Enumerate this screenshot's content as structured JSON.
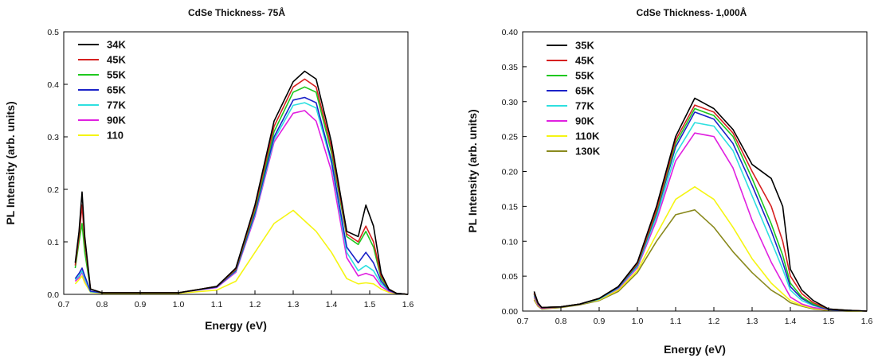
{
  "chart_data": [
    {
      "type": "line",
      "title": "CdSe Thickness- 75Å",
      "xlabel": "Energy (eV)",
      "ylabel": "PL Intensity (arb. units)",
      "xlim": [
        0.7,
        1.6
      ],
      "ylim": [
        0.0,
        0.5
      ],
      "xticks": [
        0.7,
        0.8,
        0.9,
        1.0,
        1.1,
        1.2,
        1.3,
        1.4,
        1.5,
        1.6
      ],
      "yticks": [
        0.0,
        0.1,
        0.2,
        0.3,
        0.4,
        0.5
      ],
      "x_tick_labels": [
        "0.7",
        "0.8",
        "0.9",
        "1.0",
        "1.1",
        "1.2",
        "1.3",
        "1.4",
        "1.5",
        "1.6"
      ],
      "y_tick_labels": [
        "0.0",
        "0.1",
        "0.2",
        "0.3",
        "0.4",
        "0.5"
      ],
      "grid": false,
      "legend": "top-left",
      "x": [
        0.73,
        0.74,
        0.748,
        0.755,
        0.77,
        0.8,
        0.9,
        1.0,
        1.1,
        1.15,
        1.2,
        1.25,
        1.3,
        1.33,
        1.36,
        1.4,
        1.44,
        1.47,
        1.49,
        1.51,
        1.53,
        1.55,
        1.57,
        1.6
      ],
      "series": [
        {
          "name": "34K",
          "color": "#000000",
          "values": [
            0.06,
            0.12,
            0.195,
            0.11,
            0.01,
            0.003,
            0.003,
            0.003,
            0.015,
            0.05,
            0.17,
            0.33,
            0.405,
            0.425,
            0.41,
            0.29,
            0.12,
            0.11,
            0.17,
            0.13,
            0.04,
            0.01,
            0.002,
            0.0
          ]
        },
        {
          "name": "45K",
          "color": "#d62020",
          "values": [
            0.055,
            0.11,
            0.17,
            0.1,
            0.01,
            0.003,
            0.003,
            0.003,
            0.015,
            0.048,
            0.165,
            0.32,
            0.395,
            0.41,
            0.395,
            0.28,
            0.115,
            0.1,
            0.13,
            0.1,
            0.035,
            0.01,
            0.002,
            0.0
          ]
        },
        {
          "name": "55K",
          "color": "#1fc81f",
          "values": [
            0.05,
            0.1,
            0.135,
            0.08,
            0.01,
            0.003,
            0.003,
            0.003,
            0.015,
            0.047,
            0.16,
            0.31,
            0.385,
            0.395,
            0.385,
            0.27,
            0.11,
            0.095,
            0.12,
            0.09,
            0.03,
            0.01,
            0.002,
            0.0
          ]
        },
        {
          "name": "65K",
          "color": "#1b22c8",
          "values": [
            0.03,
            0.04,
            0.05,
            0.035,
            0.006,
            0.003,
            0.003,
            0.003,
            0.014,
            0.045,
            0.155,
            0.3,
            0.37,
            0.375,
            0.365,
            0.255,
            0.09,
            0.06,
            0.08,
            0.06,
            0.025,
            0.008,
            0.002,
            0.0
          ]
        },
        {
          "name": "77K",
          "color": "#2ee0e0",
          "values": [
            0.028,
            0.035,
            0.045,
            0.03,
            0.005,
            0.003,
            0.003,
            0.003,
            0.014,
            0.044,
            0.152,
            0.295,
            0.36,
            0.365,
            0.355,
            0.25,
            0.08,
            0.045,
            0.055,
            0.045,
            0.02,
            0.008,
            0.002,
            0.0
          ]
        },
        {
          "name": "90K",
          "color": "#e020e0",
          "values": [
            0.025,
            0.032,
            0.042,
            0.028,
            0.005,
            0.003,
            0.003,
            0.003,
            0.013,
            0.042,
            0.148,
            0.29,
            0.345,
            0.35,
            0.33,
            0.235,
            0.07,
            0.035,
            0.04,
            0.035,
            0.015,
            0.006,
            0.002,
            0.0
          ]
        },
        {
          "name": "110",
          "color": "#f5f514",
          "values": [
            0.02,
            0.028,
            0.035,
            0.022,
            0.004,
            0.002,
            0.002,
            0.002,
            0.008,
            0.025,
            0.08,
            0.135,
            0.16,
            0.14,
            0.12,
            0.08,
            0.03,
            0.02,
            0.022,
            0.02,
            0.01,
            0.004,
            0.001,
            0.0
          ]
        }
      ]
    },
    {
      "type": "line",
      "title": "CdSe Thickness- 1,000Å",
      "xlabel": "Energy (eV)",
      "ylabel": "PL Intensity (arb. units)",
      "xlim": [
        0.7,
        1.6
      ],
      "ylim": [
        0.0,
        0.4
      ],
      "xticks": [
        0.7,
        0.8,
        0.9,
        1.0,
        1.1,
        1.2,
        1.3,
        1.4,
        1.5,
        1.6
      ],
      "yticks": [
        0.0,
        0.05,
        0.1,
        0.15,
        0.2,
        0.25,
        0.3,
        0.35,
        0.4
      ],
      "x_tick_labels": [
        "0.7",
        "0.8",
        "0.9",
        "1.0",
        "1.1",
        "1.2",
        "1.3",
        "1.4",
        "1.5",
        "1.6"
      ],
      "y_tick_labels": [
        "0.00",
        "0.05",
        "0.10",
        "0.15",
        "0.20",
        "0.25",
        "0.30",
        "0.35",
        "0.40"
      ],
      "grid": false,
      "legend": "top-left",
      "x": [
        0.73,
        0.74,
        0.75,
        0.8,
        0.85,
        0.9,
        0.95,
        1.0,
        1.05,
        1.1,
        1.15,
        1.2,
        1.25,
        1.3,
        1.35,
        1.38,
        1.4,
        1.43,
        1.46,
        1.5,
        1.55,
        1.6
      ],
      "series": [
        {
          "name": "35K",
          "color": "#000000",
          "values": [
            0.028,
            0.012,
            0.005,
            0.006,
            0.01,
            0.018,
            0.035,
            0.07,
            0.15,
            0.25,
            0.305,
            0.29,
            0.26,
            0.21,
            0.19,
            0.15,
            0.06,
            0.03,
            0.015,
            0.003,
            0.001,
            0.0
          ]
        },
        {
          "name": "45K",
          "color": "#d62020",
          "values": [
            0.026,
            0.011,
            0.005,
            0.006,
            0.01,
            0.018,
            0.035,
            0.068,
            0.145,
            0.245,
            0.295,
            0.285,
            0.255,
            0.2,
            0.15,
            0.1,
            0.05,
            0.025,
            0.012,
            0.003,
            0.001,
            0.0
          ]
        },
        {
          "name": "55K",
          "color": "#1fc81f",
          "values": [
            0.025,
            0.011,
            0.005,
            0.006,
            0.01,
            0.018,
            0.035,
            0.067,
            0.142,
            0.24,
            0.29,
            0.28,
            0.25,
            0.19,
            0.125,
            0.08,
            0.04,
            0.02,
            0.01,
            0.003,
            0.001,
            0.0
          ]
        },
        {
          "name": "65K",
          "color": "#1b22c8",
          "values": [
            0.024,
            0.01,
            0.005,
            0.006,
            0.01,
            0.018,
            0.034,
            0.066,
            0.14,
            0.235,
            0.285,
            0.275,
            0.24,
            0.18,
            0.115,
            0.07,
            0.035,
            0.018,
            0.009,
            0.002,
            0.001,
            0.0
          ]
        },
        {
          "name": "77K",
          "color": "#2ee0e0",
          "values": [
            0.022,
            0.01,
            0.005,
            0.006,
            0.01,
            0.017,
            0.033,
            0.064,
            0.135,
            0.225,
            0.27,
            0.265,
            0.23,
            0.165,
            0.1,
            0.06,
            0.03,
            0.015,
            0.008,
            0.002,
            0.001,
            0.0
          ]
        },
        {
          "name": "90K",
          "color": "#e020e0",
          "values": [
            0.02,
            0.009,
            0.004,
            0.006,
            0.01,
            0.017,
            0.032,
            0.062,
            0.13,
            0.215,
            0.255,
            0.25,
            0.205,
            0.13,
            0.07,
            0.04,
            0.02,
            0.01,
            0.005,
            0.002,
            0.001,
            0.0
          ]
        },
        {
          "name": "110K",
          "color": "#f5f514",
          "values": [
            0.018,
            0.008,
            0.004,
            0.006,
            0.01,
            0.016,
            0.03,
            0.058,
            0.11,
            0.16,
            0.178,
            0.16,
            0.12,
            0.075,
            0.04,
            0.025,
            0.015,
            0.008,
            0.004,
            0.001,
            0.0,
            0.0
          ]
        },
        {
          "name": "130K",
          "color": "#8a8a1e",
          "values": [
            0.016,
            0.007,
            0.003,
            0.005,
            0.009,
            0.015,
            0.028,
            0.055,
            0.1,
            0.138,
            0.145,
            0.12,
            0.085,
            0.055,
            0.03,
            0.02,
            0.012,
            0.007,
            0.003,
            0.001,
            0.0,
            0.0
          ]
        }
      ]
    }
  ]
}
